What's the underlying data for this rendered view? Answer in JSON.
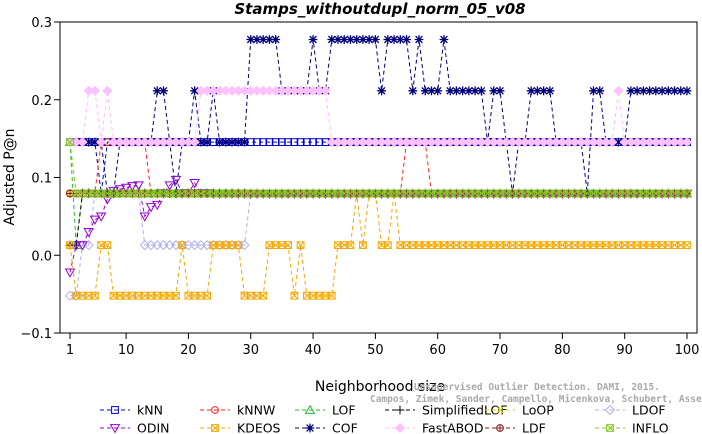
{
  "chart_data": {
    "type": "line",
    "title": "Stamps_withoutdupl_norm_05_v08",
    "xlabel": "Neighborhood size",
    "ylabel": "Adjusted P@n",
    "xlim": [
      1,
      100
    ],
    "ylim": [
      -0.1,
      0.3
    ],
    "xticks": [
      1,
      10,
      20,
      30,
      40,
      50,
      60,
      70,
      80,
      90,
      100
    ],
    "yticks": [
      -0.1,
      0.0,
      0.1,
      0.2,
      0.3
    ],
    "xtick_labels": [
      "1",
      "10",
      "20",
      "30",
      "40",
      "50",
      "60",
      "70",
      "80",
      "90",
      "100"
    ],
    "ytick_labels": [
      "−0.1",
      "0.0",
      "0.1",
      "0.2",
      "0.3"
    ],
    "legend_placement": "bottom",
    "credit_lines": [
      "Unsupervised Outlier Detection. DAMI, 2015.",
      "Campos, Zimek, Sander, Campello, Micenkova, Schubert, Assent, Houle"
    ],
    "series": [
      {
        "name": "kNN",
        "color": "#0000cd",
        "marker": "square",
        "segments": [
          [
            1,
            5,
            0.1455
          ],
          [
            6,
            6,
            0.0795
          ],
          [
            7,
            100,
            0.1455
          ]
        ]
      },
      {
        "name": "kNNW",
        "color": "#ff2020",
        "marker": "circle",
        "segments": [
          [
            1,
            5,
            0.0795
          ],
          [
            6,
            6,
            0.1455
          ],
          [
            7,
            13,
            0.1455
          ],
          [
            14,
            54,
            0.0795
          ],
          [
            55,
            58,
            0.1455
          ],
          [
            59,
            100,
            0.0795
          ]
        ]
      },
      {
        "name": "LOF",
        "color": "#22bb22",
        "marker": "triangle-up",
        "segments": [
          [
            1,
            1,
            0.1455
          ],
          [
            2,
            2,
            0.013
          ],
          [
            3,
            100,
            0.0795
          ]
        ]
      },
      {
        "name": "SimplifiedLOF",
        "color": "#000000",
        "marker": "plus",
        "segments": [
          [
            1,
            1,
            0.013
          ],
          [
            2,
            2,
            0.013
          ],
          [
            3,
            100,
            0.0795
          ]
        ]
      },
      {
        "name": "LoOP",
        "color": "#e6d800",
        "marker": "x",
        "segments": [
          [
            1,
            100,
            0.0795
          ]
        ]
      },
      {
        "name": "LDOF",
        "color": "#b0b0e8",
        "marker": "diamond",
        "segments": [
          [
            1,
            2,
            -0.052
          ],
          [
            3,
            3,
            0.013
          ],
          [
            4,
            4,
            0.013
          ],
          [
            5,
            12,
            0.0795
          ],
          [
            13,
            29,
            0.013
          ],
          [
            30,
            100,
            0.0795
          ]
        ]
      },
      {
        "name": "ODIN",
        "color": "#9400d3",
        "marker": "triangle-down",
        "points": [
          [
            1,
            -0.022
          ],
          [
            2,
            0.013
          ],
          [
            3,
            0.013
          ],
          [
            4,
            0.03
          ],
          [
            5,
            0.046
          ],
          [
            6,
            0.05
          ],
          [
            7,
            0.072
          ],
          [
            8,
            0.083
          ],
          [
            9,
            0.085
          ],
          [
            10,
            0.087
          ],
          [
            11,
            0.089
          ],
          [
            12,
            0.09
          ],
          [
            13,
            0.05
          ],
          [
            14,
            0.062
          ],
          [
            15,
            0.065
          ],
          [
            16,
            0.08
          ],
          [
            17,
            0.09
          ],
          [
            18,
            0.097
          ],
          [
            19,
            0.08
          ],
          [
            20,
            0.08
          ],
          [
            21,
            0.093
          ],
          [
            22,
            0.08
          ],
          [
            23,
            0.08
          ]
        ],
        "tail": [
          24,
          100,
          0.0795
        ]
      },
      {
        "name": "KDEOS",
        "color": "#f5a800",
        "marker": "boxed-x",
        "segments": [
          [
            1,
            1,
            0.013
          ],
          [
            2,
            5,
            -0.052
          ],
          [
            6,
            6,
            0.013
          ],
          [
            7,
            7,
            0.013
          ],
          [
            8,
            18,
            -0.052
          ],
          [
            19,
            19,
            0.013
          ],
          [
            20,
            23,
            -0.052
          ],
          [
            24,
            28,
            0.013
          ],
          [
            29,
            32,
            -0.052
          ],
          [
            33,
            36,
            0.013
          ],
          [
            37,
            37,
            -0.052
          ],
          [
            38,
            38,
            0.013
          ],
          [
            39,
            43,
            -0.052
          ],
          [
            44,
            46,
            0.013
          ],
          [
            47,
            47,
            0.0795
          ],
          [
            48,
            48,
            0.013
          ],
          [
            49,
            50,
            0.0795
          ],
          [
            51,
            52,
            0.013
          ],
          [
            53,
            53,
            0.0795
          ],
          [
            54,
            100,
            0.013
          ]
        ]
      },
      {
        "name": "COF",
        "color": "#00007a",
        "marker": "asterisk",
        "points": [
          [
            1,
            0.1455
          ],
          [
            2,
            0.1455
          ],
          [
            3,
            0.1455
          ],
          [
            4,
            0.1455
          ],
          [
            5,
            0.1455
          ],
          [
            6,
            0.1455
          ],
          [
            7,
            0.0795
          ],
          [
            8,
            0.0795
          ],
          [
            9,
            0.1455
          ],
          [
            10,
            0.1455
          ],
          [
            11,
            0.1455
          ],
          [
            12,
            0.1455
          ],
          [
            13,
            0.1455
          ],
          [
            14,
            0.1455
          ],
          [
            15,
            0.2115
          ],
          [
            16,
            0.2115
          ],
          [
            17,
            0.1455
          ],
          [
            18,
            0.0795
          ],
          [
            19,
            0.1455
          ],
          [
            20,
            0.1455
          ],
          [
            21,
            0.2115
          ],
          [
            22,
            0.1455
          ],
          [
            23,
            0.1455
          ],
          [
            24,
            0.2115
          ],
          [
            25,
            0.1455
          ],
          [
            26,
            0.1455
          ],
          [
            27,
            0.1455
          ],
          [
            28,
            0.1455
          ],
          [
            29,
            0.1455
          ],
          [
            30,
            0.2775
          ],
          [
            31,
            0.2775
          ],
          [
            32,
            0.2775
          ],
          [
            33,
            0.2775
          ],
          [
            34,
            0.2775
          ],
          [
            35,
            0.2115
          ],
          [
            36,
            0.2115
          ],
          [
            37,
            0.2115
          ],
          [
            38,
            0.2115
          ],
          [
            39,
            0.2115
          ],
          [
            40,
            0.2775
          ],
          [
            41,
            0.2115
          ],
          [
            42,
            0.2115
          ],
          [
            43,
            0.2775
          ],
          [
            44,
            0.2775
          ],
          [
            45,
            0.2775
          ],
          [
            46,
            0.2775
          ],
          [
            47,
            0.2775
          ],
          [
            48,
            0.2775
          ],
          [
            49,
            0.2775
          ],
          [
            50,
            0.2775
          ],
          [
            51,
            0.2115
          ],
          [
            52,
            0.2775
          ],
          [
            53,
            0.2775
          ],
          [
            54,
            0.2775
          ],
          [
            55,
            0.2775
          ],
          [
            56,
            0.2115
          ],
          [
            57,
            0.2775
          ],
          [
            58,
            0.2115
          ],
          [
            59,
            0.2115
          ],
          [
            60,
            0.2115
          ],
          [
            61,
            0.2775
          ],
          [
            62,
            0.2115
          ],
          [
            63,
            0.2115
          ],
          [
            64,
            0.2115
          ],
          [
            65,
            0.2115
          ],
          [
            66,
            0.2115
          ],
          [
            67,
            0.2115
          ],
          [
            68,
            0.1455
          ],
          [
            69,
            0.2115
          ],
          [
            70,
            0.2115
          ],
          [
            71,
            0.1455
          ],
          [
            72,
            0.0795
          ],
          [
            73,
            0.1455
          ],
          [
            74,
            0.1455
          ],
          [
            75,
            0.2115
          ],
          [
            76,
            0.2115
          ],
          [
            77,
            0.2115
          ],
          [
            78,
            0.2115
          ],
          [
            79,
            0.1455
          ],
          [
            80,
            0.1455
          ],
          [
            81,
            0.1455
          ],
          [
            82,
            0.1455
          ],
          [
            83,
            0.1455
          ],
          [
            84,
            0.0795
          ],
          [
            85,
            0.2115
          ],
          [
            86,
            0.2115
          ],
          [
            87,
            0.1455
          ],
          [
            88,
            0.1455
          ],
          [
            89,
            0.1455
          ],
          [
            90,
            0.1455
          ],
          [
            91,
            0.2115
          ],
          [
            92,
            0.2115
          ],
          [
            93,
            0.2115
          ],
          [
            94,
            0.2115
          ],
          [
            95,
            0.2115
          ],
          [
            96,
            0.2115
          ],
          [
            97,
            0.2115
          ],
          [
            98,
            0.2115
          ],
          [
            99,
            0.2115
          ],
          [
            100,
            0.2115
          ]
        ]
      },
      {
        "name": "FastABOD",
        "color": "#ffc0ff",
        "marker": "diamond-filled",
        "segments": [
          [
            1,
            1,
            0.1455
          ],
          [
            2,
            3,
            0.1455
          ],
          [
            4,
            5,
            0.2115
          ],
          [
            6,
            6,
            0.1455
          ],
          [
            7,
            7,
            0.2115
          ],
          [
            8,
            21,
            0.1455
          ],
          [
            22,
            42,
            0.2115
          ],
          [
            43,
            58,
            0.1455
          ],
          [
            59,
            62,
            0.1455
          ],
          [
            63,
            68,
            0.1455
          ],
          [
            69,
            88,
            0.1455
          ],
          [
            89,
            89,
            0.2115
          ],
          [
            90,
            90,
            0.1455
          ],
          [
            91,
            100,
            0.1455
          ]
        ]
      },
      {
        "name": "LDF",
        "color": "#8b1a1a",
        "marker": "circle-plus",
        "segments": [
          [
            1,
            100,
            0.0795
          ]
        ]
      },
      {
        "name": "INFLO",
        "color": "#88cc22",
        "marker": "boxed-x",
        "segments": [
          [
            1,
            1,
            0.1455
          ],
          [
            2,
            100,
            0.0795
          ]
        ]
      }
    ]
  }
}
